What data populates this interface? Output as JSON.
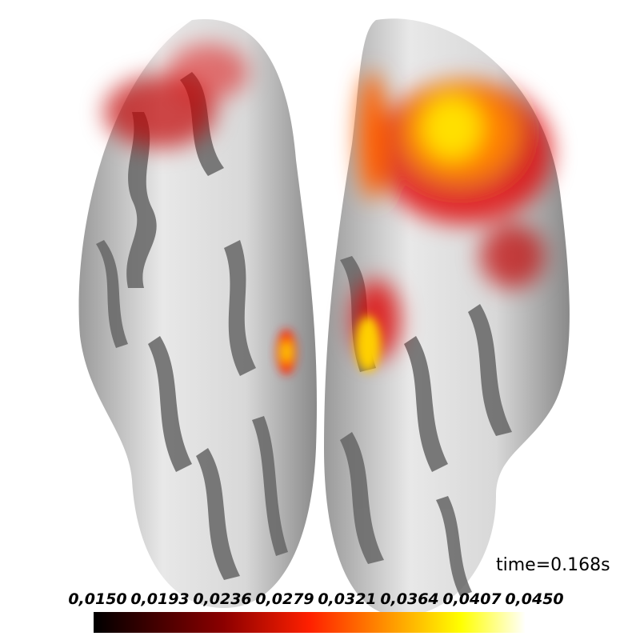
{
  "time_label": "time=0.168s",
  "colorbar": {
    "ticks": [
      "0,0150",
      "0,0193",
      "0,0236",
      "0,0279",
      "0,0321",
      "0,0364",
      "0,0407",
      "0,0450"
    ]
  }
}
